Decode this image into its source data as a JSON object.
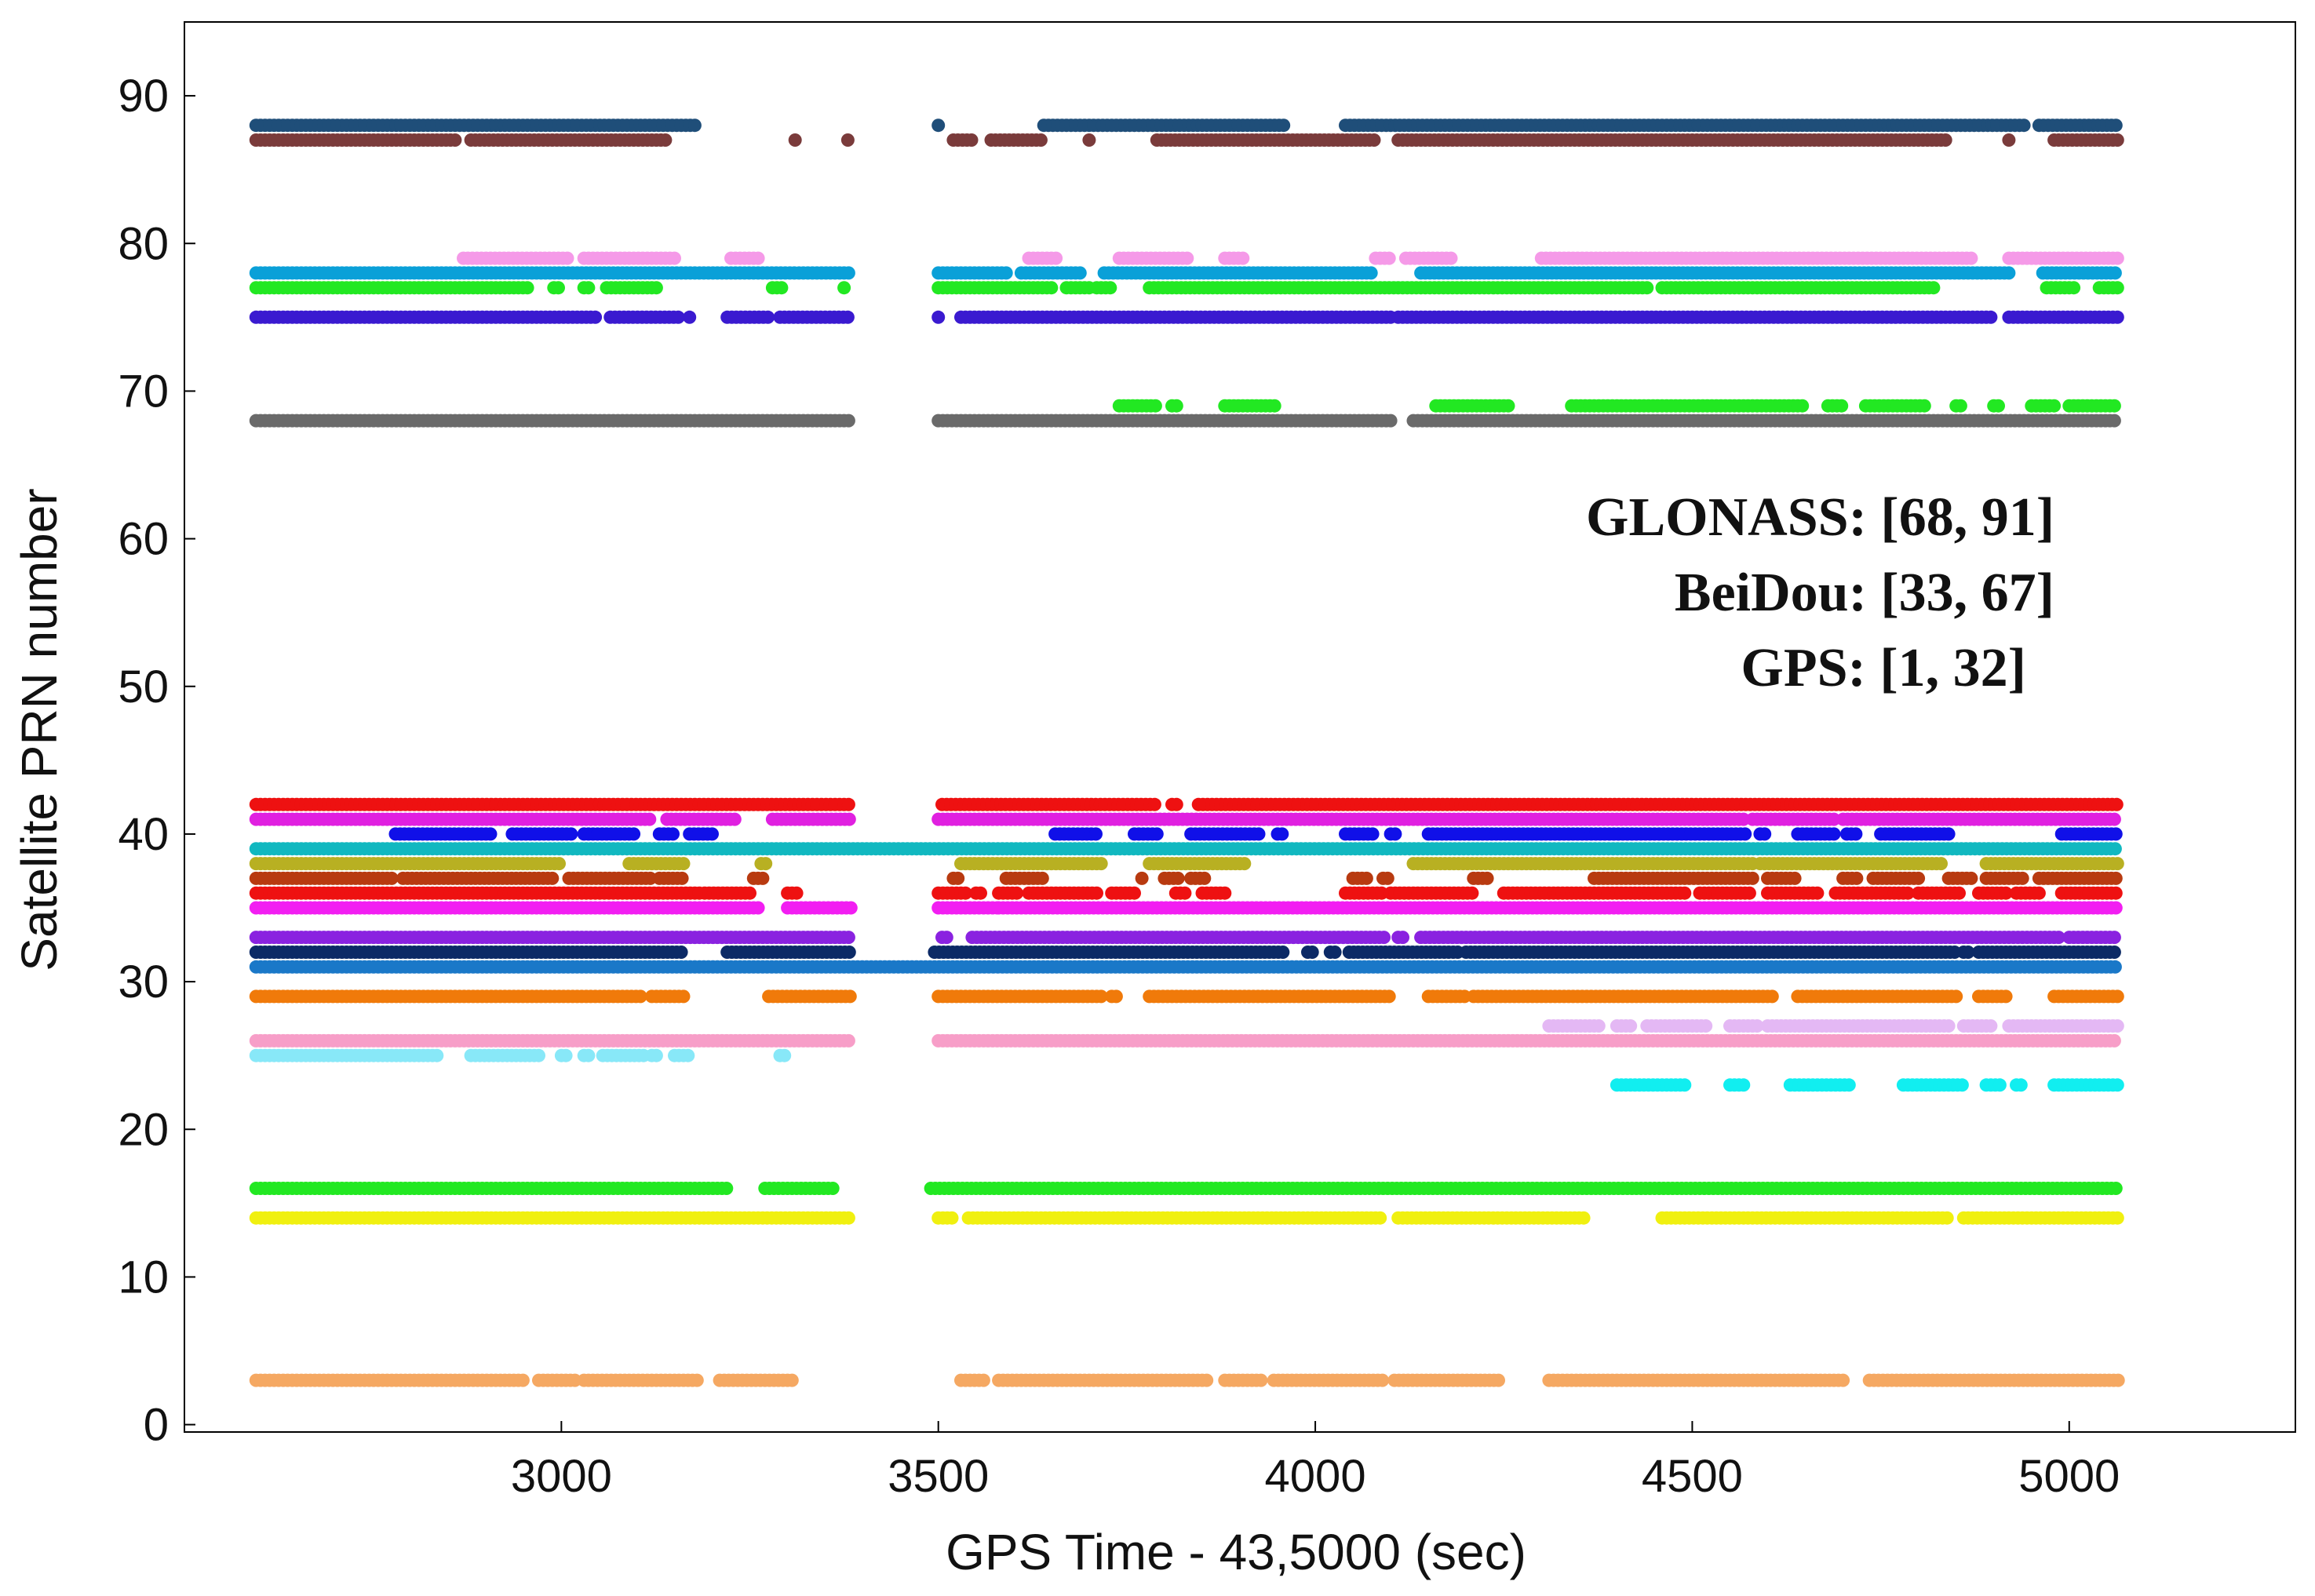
{
  "chart_data": {
    "type": "scatter",
    "title": "",
    "xlabel": "GPS Time - 43,5000 (sec)",
    "ylabel": "Satellite PRN number",
    "xlim": [
      2500,
      5300
    ],
    "ylim": [
      -0.5,
      95
    ],
    "xticks": [
      3000,
      3500,
      4000,
      4500,
      5000
    ],
    "yticks": [
      0,
      10,
      20,
      30,
      40,
      50,
      60,
      70,
      80,
      90
    ],
    "grid": false,
    "legend": "none",
    "annotations": [
      "GLONASS: [68, 91]",
      "BeiDou: [33, 67]",
      "GPS: [1, 32]"
    ],
    "series": [
      {
        "prn": 88,
        "color": "#1f4e79",
        "segments": [
          [
            2595,
            3180
          ],
          [
            3500,
            3505
          ],
          [
            3640,
            3960
          ],
          [
            4040,
            4940
          ],
          [
            4960,
            5065
          ]
        ]
      },
      {
        "prn": 87,
        "color": "#7a3b3b",
        "segments": [
          [
            2595,
            2860
          ],
          [
            2880,
            3140
          ],
          [
            3310,
            3315
          ],
          [
            3380,
            3385
          ],
          [
            3520,
            3545
          ],
          [
            3570,
            3640
          ],
          [
            3700,
            3705
          ],
          [
            3790,
            4080
          ],
          [
            4110,
            4840
          ],
          [
            4920,
            4925
          ],
          [
            4980,
            5065
          ]
        ]
      },
      {
        "prn": 79,
        "color": "#f59ae8",
        "segments": [
          [
            2870,
            3010
          ],
          [
            3030,
            3150
          ],
          [
            3225,
            3265
          ],
          [
            3620,
            3660
          ],
          [
            3740,
            3830
          ],
          [
            3880,
            3905
          ],
          [
            4080,
            4100
          ],
          [
            4120,
            4180
          ],
          [
            4300,
            4870
          ],
          [
            4920,
            5065
          ]
        ]
      },
      {
        "prn": 78,
        "color": "#0aa0d8",
        "segments": [
          [
            2595,
            3385
          ],
          [
            3500,
            3590
          ],
          [
            3610,
            3690
          ],
          [
            3720,
            4075
          ],
          [
            4140,
            4925
          ],
          [
            4965,
            5065
          ]
        ]
      },
      {
        "prn": 77,
        "color": "#22e822",
        "segments": [
          [
            2595,
            2960
          ],
          [
            2990,
            3000
          ],
          [
            3030,
            3040
          ],
          [
            3060,
            3130
          ],
          [
            3280,
            3295
          ],
          [
            3375,
            3380
          ],
          [
            3500,
            3655
          ],
          [
            3670,
            3700
          ],
          [
            3710,
            3730
          ],
          [
            3780,
            4440
          ],
          [
            4460,
            4820
          ],
          [
            4970,
            5010
          ],
          [
            5040,
            5065
          ]
        ]
      },
      {
        "prn": 75,
        "color": "#3a1ad0",
        "segments": [
          [
            2595,
            3050
          ],
          [
            3065,
            3160
          ],
          [
            3170,
            3175
          ],
          [
            3220,
            3275
          ],
          [
            3290,
            3380
          ],
          [
            3500,
            3505
          ],
          [
            3530,
            4100
          ],
          [
            4110,
            4900
          ],
          [
            4920,
            5065
          ]
        ]
      },
      {
        "prn": 69,
        "color": "#22e822",
        "segments": [
          [
            3740,
            3790
          ],
          [
            3810,
            3820
          ],
          [
            3880,
            3950
          ],
          [
            4160,
            4260
          ],
          [
            4340,
            4650
          ],
          [
            4680,
            4700
          ],
          [
            4730,
            4810
          ],
          [
            4850,
            4860
          ],
          [
            4900,
            4910
          ],
          [
            4950,
            4980
          ],
          [
            5000,
            5065
          ]
        ]
      },
      {
        "prn": 68,
        "color": "#6a6a6a",
        "segments": [
          [
            2595,
            3385
          ],
          [
            3500,
            4100
          ],
          [
            4130,
            5065
          ]
        ]
      },
      {
        "prn": 42,
        "color": "#ee1111",
        "segments": [
          [
            2595,
            3385
          ],
          [
            3505,
            3790
          ],
          [
            3810,
            3820
          ],
          [
            3845,
            5065
          ]
        ]
      },
      {
        "prn": 41,
        "color": "#e020e0",
        "segments": [
          [
            2595,
            3120
          ],
          [
            3140,
            3235
          ],
          [
            3280,
            3385
          ],
          [
            3500,
            4570
          ],
          [
            4580,
            4690
          ],
          [
            4700,
            5065
          ]
        ]
      },
      {
        "prn": 40,
        "color": "#1010e8",
        "segments": [
          [
            2780,
            2910
          ],
          [
            2935,
            3015
          ],
          [
            3030,
            3100
          ],
          [
            3130,
            3150
          ],
          [
            3170,
            3200
          ],
          [
            3655,
            3710
          ],
          [
            3760,
            3790
          ],
          [
            3835,
            3930
          ],
          [
            3950,
            3960
          ],
          [
            4040,
            4080
          ],
          [
            4100,
            4110
          ],
          [
            4150,
            4570
          ],
          [
            4590,
            4600
          ],
          [
            4640,
            4690
          ],
          [
            4705,
            4720
          ],
          [
            4750,
            4840
          ],
          [
            4990,
            5065
          ]
        ]
      },
      {
        "prn": 39,
        "color": "#11b8c0",
        "segments": [
          [
            2595,
            5065
          ]
        ]
      },
      {
        "prn": 38,
        "color": "#b8b022",
        "segments": [
          [
            2595,
            3000
          ],
          [
            3090,
            3165
          ],
          [
            3265,
            3275
          ],
          [
            3530,
            3720
          ],
          [
            3780,
            3910
          ],
          [
            4130,
            4580
          ],
          [
            4590,
            4835
          ],
          [
            4890,
            5065
          ]
        ]
      },
      {
        "prn": 37,
        "color": "#b83a10",
        "segments": [
          [
            2595,
            2780
          ],
          [
            2790,
            2990
          ],
          [
            3010,
            3120
          ],
          [
            3130,
            3165
          ],
          [
            3255,
            3270
          ],
          [
            3520,
            3530
          ],
          [
            3590,
            3640
          ],
          [
            3770,
            3775
          ],
          [
            3800,
            3820
          ],
          [
            3835,
            3855
          ],
          [
            4050,
            4070
          ],
          [
            4090,
            4100
          ],
          [
            4210,
            4230
          ],
          [
            4370,
            4580
          ],
          [
            4600,
            4640
          ],
          [
            4700,
            4720
          ],
          [
            4740,
            4800
          ],
          [
            4840,
            4870
          ],
          [
            4890,
            4940
          ],
          [
            4960,
            5065
          ]
        ]
      },
      {
        "prn": 36,
        "color": "#ee1111",
        "segments": [
          [
            2595,
            3185
          ],
          [
            3190,
            3255
          ],
          [
            3300,
            3315
          ],
          [
            3500,
            3540
          ],
          [
            3550,
            3560
          ],
          [
            3580,
            3605
          ],
          [
            3620,
            3710
          ],
          [
            3730,
            3760
          ],
          [
            3815,
            3830
          ],
          [
            3850,
            3880
          ],
          [
            4040,
            4090
          ],
          [
            4100,
            4210
          ],
          [
            4250,
            4490
          ],
          [
            4510,
            4580
          ],
          [
            4600,
            4670
          ],
          [
            4690,
            4790
          ],
          [
            4800,
            4855
          ],
          [
            4880,
            4920
          ],
          [
            4930,
            4960
          ],
          [
            4990,
            5065
          ]
        ]
      },
      {
        "prn": 35,
        "color": "#f21ef2",
        "segments": [
          [
            2595,
            3265
          ],
          [
            3300,
            3385
          ],
          [
            3500,
            3580
          ],
          [
            3580,
            5065
          ]
        ]
      },
      {
        "prn": 33,
        "color": "#8a22e0",
        "segments": [
          [
            2595,
            3385
          ],
          [
            3505,
            3515
          ],
          [
            3545,
            4095
          ],
          [
            4110,
            4120
          ],
          [
            4140,
            4990
          ],
          [
            5000,
            5065
          ]
        ]
      },
      {
        "prn": 32,
        "color": "#0c2a66",
        "segments": [
          [
            2595,
            3160
          ],
          [
            3220,
            3385
          ],
          [
            3495,
            3960
          ],
          [
            3990,
            4000
          ],
          [
            4020,
            4030
          ],
          [
            4045,
            4190
          ],
          [
            4200,
            4850
          ],
          [
            4860,
            4870
          ],
          [
            4880,
            5065
          ]
        ]
      },
      {
        "prn": 31,
        "color": "#1a78c8",
        "segments": [
          [
            2595,
            5065
          ]
        ]
      },
      {
        "prn": 29,
        "color": "#f07a0a",
        "segments": [
          [
            2595,
            3110
          ],
          [
            3120,
            3165
          ],
          [
            3275,
            3385
          ],
          [
            3500,
            3720
          ],
          [
            3730,
            3740
          ],
          [
            3780,
            4100
          ],
          [
            4150,
            4200
          ],
          [
            4210,
            4610
          ],
          [
            4640,
            4850
          ],
          [
            4880,
            4920
          ],
          [
            4980,
            5065
          ]
        ]
      },
      {
        "prn": 27,
        "color": "#e4b8f4",
        "segments": [
          [
            4310,
            4380
          ],
          [
            4400,
            4420
          ],
          [
            4440,
            4520
          ],
          [
            4550,
            4590
          ],
          [
            4600,
            4840
          ],
          [
            4860,
            4900
          ],
          [
            4920,
            5065
          ]
        ]
      },
      {
        "prn": 26,
        "color": "#f79ec8",
        "segments": [
          [
            2595,
            3385
          ],
          [
            3500,
            5065
          ]
        ]
      },
      {
        "prn": 25,
        "color": "#88e8f8",
        "segments": [
          [
            2595,
            2840
          ],
          [
            2880,
            2970
          ],
          [
            3000,
            3010
          ],
          [
            3030,
            3040
          ],
          [
            3055,
            3110
          ],
          [
            3120,
            3130
          ],
          [
            3150,
            3170
          ],
          [
            3290,
            3300
          ]
        ]
      },
      {
        "prn": 23,
        "color": "#11eef0",
        "segments": [
          [
            4400,
            4490
          ],
          [
            4550,
            4570
          ],
          [
            4630,
            4710
          ],
          [
            4780,
            4860
          ],
          [
            4890,
            4910
          ],
          [
            4930,
            4940
          ],
          [
            4980,
            5065
          ]
        ]
      },
      {
        "prn": 16,
        "color": "#22e822",
        "segments": [
          [
            2595,
            3220
          ],
          [
            3270,
            3360
          ],
          [
            3490,
            5065
          ]
        ]
      },
      {
        "prn": 14,
        "color": "#f0f010",
        "segments": [
          [
            2595,
            3385
          ],
          [
            3500,
            3520
          ],
          [
            3540,
            4090
          ],
          [
            4110,
            4360
          ],
          [
            4460,
            4840
          ],
          [
            4860,
            5065
          ]
        ]
      },
      {
        "prn": 3,
        "color": "#f5a862",
        "segments": [
          [
            2595,
            2950
          ],
          [
            2970,
            3020
          ],
          [
            3030,
            3180
          ],
          [
            3210,
            3310
          ],
          [
            3530,
            3560
          ],
          [
            3580,
            3860
          ],
          [
            3880,
            3930
          ],
          [
            3945,
            4090
          ],
          [
            4105,
            4245
          ],
          [
            4310,
            4700
          ],
          [
            4735,
            5065
          ]
        ]
      }
    ]
  }
}
